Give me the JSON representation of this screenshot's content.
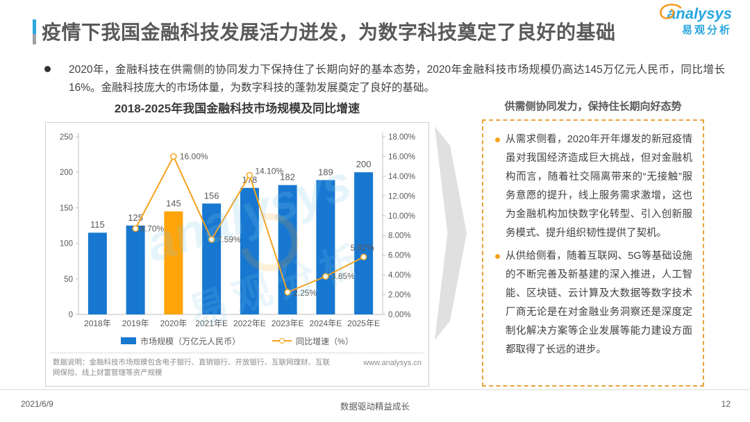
{
  "header": {
    "title": "疫情下我国金融科技发展活力迸发，为数字科技奠定了良好的基础",
    "logo_en": "analysys",
    "logo_cn": "易观分析"
  },
  "summary": {
    "text": "2020年，金融科技在供需侧的协同发力下保持住了长期向好的基本态势，2020年金融科技市场规模仍高达145万亿元人民币，同比增长16%。金融科技庞大的市场体量，为数字科技的蓬勃发展奠定了良好的基础。"
  },
  "chart_data": {
    "type": "bar",
    "title": "2018-2025年我国金融科技市场规模及同比增速",
    "categories": [
      "2018年",
      "2019年",
      "2020年",
      "2021年E",
      "2022年E",
      "2023年E",
      "2024年E",
      "2025年E"
    ],
    "series": [
      {
        "name": "市场规模（万亿元人民币）",
        "type": "bar",
        "axis": "left",
        "values": [
          115,
          125,
          145,
          156,
          178,
          182,
          189,
          200
        ],
        "color": "#1878d1",
        "highlight_index": 2,
        "highlight_color": "#ffa40b"
      },
      {
        "name": "同比增速（%）",
        "type": "line",
        "axis": "right",
        "values": [
          null,
          8.7,
          16.0,
          7.59,
          14.1,
          2.25,
          3.85,
          5.82
        ],
        "labels": [
          "",
          "8.70%",
          "16.00%",
          "7.59%",
          "14.10%",
          "2.25%",
          "3.85%",
          "5.82%"
        ],
        "color": "#f5a31e"
      }
    ],
    "left_axis": {
      "min": 0,
      "max": 250,
      "ticks": [
        "0",
        "50",
        "100",
        "150",
        "200",
        "250"
      ]
    },
    "right_axis": {
      "min": 0,
      "max": 18,
      "ticks": [
        "0.00%",
        "2.00%",
        "4.00%",
        "6.00%",
        "8.00%",
        "10.00%",
        "12.00%",
        "14.00%",
        "16.00%",
        "18.00%"
      ]
    },
    "legend_position": "bottom",
    "grid": false
  },
  "chart_note": {
    "text": "数据说明：金融科技市场规模包含电子银行、直销银行、开放银行、互联网理财、互联网保险、线上财富管理等资产规模",
    "site": "www.analysys.cn"
  },
  "watermark": {
    "text_en": "analysys",
    "text_cn": "易观分析"
  },
  "insight": {
    "header": "供需侧协同发力，保持住长期向好态势",
    "bullets": [
      "从需求侧看，2020年开年爆发的新冠疫情虽对我国经济造成巨大挑战，但对金融机构而言，随着社交隔离带来的“无接触”服务意愿的提升，线上服务需求激增，这也为金融机构加快数字化转型、引入创新服务模式、提升组织韧性提供了契机。",
      "从供给侧看，随着互联网、5G等基础设施的不断完善及新基建的深入推进，人工智能、区块链、云计算及大数据等数字技术厂商无论是在对金融业务洞察还是深度定制化解决方案等企业发展等能力建设方面都取得了长远的进步。"
    ]
  },
  "footer": {
    "date": "2021/6/9",
    "center": "数据驱动精益成长",
    "page": "12"
  },
  "colors": {
    "bar_blue": "#1878d1",
    "bar_highlight_orange": "#ffa40b",
    "line_orange": "#f5a31e",
    "panel_dashed_border": "#e9a23b",
    "accent_blue": "#29a7e0",
    "accent_gray": "#9ea0a3",
    "axis_gray": "#bfbfbf",
    "text_gray": "#595959"
  }
}
